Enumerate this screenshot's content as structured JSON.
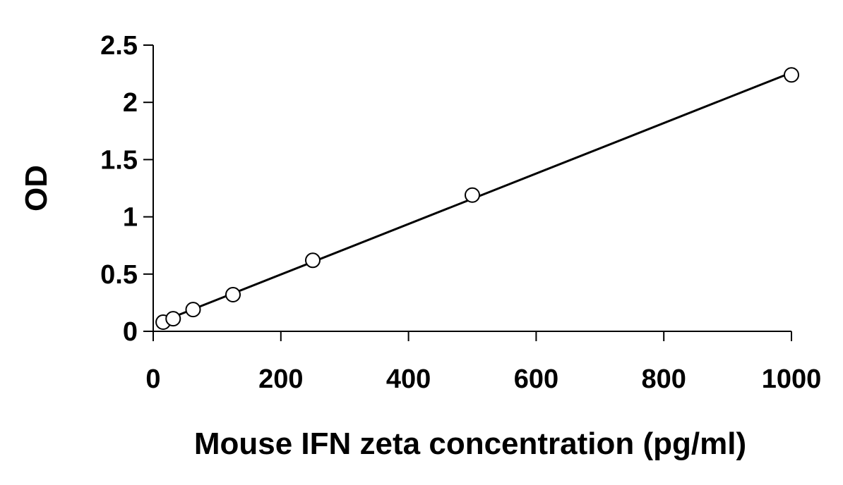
{
  "chart_data": {
    "type": "scatter",
    "xlabel": "Mouse IFN zeta concentration (pg/ml)",
    "ylabel": "OD",
    "xlim": [
      0,
      1000
    ],
    "ylim": [
      0,
      2.5
    ],
    "x_ticks": [
      "0",
      "200",
      "400",
      "600",
      "800",
      "1000"
    ],
    "y_ticks": [
      "0",
      "0.5",
      "1",
      "1.5",
      "2",
      "2.5"
    ],
    "grid": false,
    "series": [
      {
        "marker": "open-circle",
        "x": [
          15.6,
          31.25,
          62.5,
          125,
          250,
          500,
          1000
        ],
        "y": [
          0.08,
          0.11,
          0.19,
          0.32,
          0.62,
          1.19,
          2.24
        ]
      }
    ],
    "fit_line": {
      "x": [
        15.6,
        1000
      ],
      "y": [
        0.09,
        2.26
      ]
    }
  }
}
